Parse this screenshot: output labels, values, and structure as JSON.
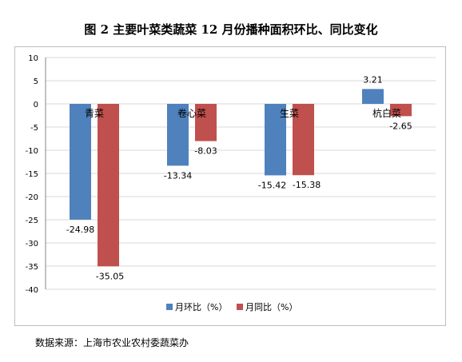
{
  "title": "图 2  主要叶菜类蔬菜 12 月份播种面积环比、同比变化",
  "source": "数据来源：上海市农业农村委蔬菜办",
  "colors": {
    "mom": "#4f81bd",
    "yoy": "#c0504d",
    "grid": "#d9d9d9",
    "axis": "#868686"
  },
  "chart_data": {
    "type": "bar",
    "categories": [
      "青菜",
      "卷心菜",
      "生菜",
      "杭白菜"
    ],
    "series": [
      {
        "name": "月环比（%）",
        "values": [
          -24.98,
          -13.34,
          -15.42,
          3.21
        ]
      },
      {
        "name": "月同比（%）",
        "values": [
          -35.05,
          -8.03,
          -15.38,
          -2.65
        ]
      }
    ],
    "data_labels": [
      [
        "-24.98",
        "-13.34",
        "-15.42",
        "3.21"
      ],
      [
        "-35.05",
        "-8.03",
        "-15.38",
        "-2.65"
      ]
    ],
    "ylim": [
      -40,
      10
    ],
    "yticks": [
      "10",
      "5",
      "0",
      "-5",
      "-10",
      "-15",
      "-20",
      "-25",
      "-30",
      "-35",
      "-40"
    ],
    "grid": true,
    "legend_position": "bottom"
  }
}
